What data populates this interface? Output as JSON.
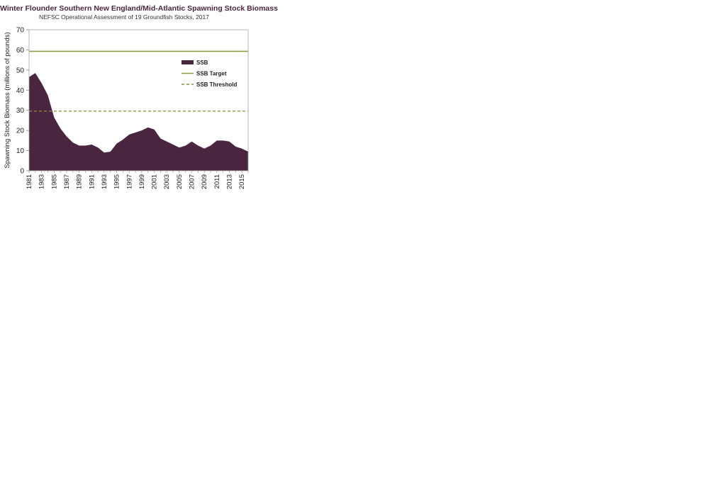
{
  "chart_data": {
    "type": "area",
    "title": "Winter Flounder Southern New England/Mid-Atlantic Spawning Stock Biomass",
    "subtitle": "NEFSC Operational Assessment of 19 Groundfish Stocks, 2017",
    "xlabel": "",
    "ylabel": "Spawning Stock Biomass (millions of pounds)",
    "ylim": [
      0,
      70
    ],
    "yticks": [
      0,
      10,
      20,
      30,
      40,
      50,
      60,
      70
    ],
    "xticks": [
      "1981",
      "1983",
      "1985",
      "1987",
      "1989",
      "1991",
      "1993",
      "1995",
      "1997",
      "1999",
      "2001",
      "2003",
      "2005",
      "2007",
      "2009",
      "2011",
      "2013",
      "2015"
    ],
    "x": [
      1981,
      1982,
      1983,
      1984,
      1985,
      1986,
      1987,
      1988,
      1989,
      1990,
      1991,
      1992,
      1993,
      1994,
      1995,
      1996,
      1997,
      1998,
      1999,
      2000,
      2001,
      2002,
      2003,
      2004,
      2005,
      2006,
      2007,
      2008,
      2009,
      2010,
      2011,
      2012,
      2013,
      2014,
      2015,
      2016
    ],
    "xrange": [
      1981,
      2016
    ],
    "grid": false,
    "legend_position": "top-right",
    "series": [
      {
        "name": "SSB",
        "kind": "area",
        "color": "#4a2540",
        "values": [
          46.5,
          48.5,
          43.5,
          37.5,
          26.5,
          21.0,
          17.0,
          14.0,
          12.5,
          12.5,
          13.0,
          11.5,
          9.0,
          9.5,
          13.5,
          15.5,
          18.0,
          19.0,
          20.0,
          21.5,
          20.5,
          16.0,
          14.5,
          13.0,
          11.5,
          12.5,
          14.5,
          12.5,
          11.0,
          12.5,
          15.0,
          15.0,
          14.5,
          12.0,
          11.0,
          9.5
        ]
      },
      {
        "name": "SSB Target",
        "kind": "hline",
        "value": 59.3,
        "color": "#8aa040",
        "dash": "solid"
      },
      {
        "name": "SSB Threshold",
        "kind": "hline",
        "value": 29.6,
        "color": "#8a8a3c",
        "dash": "dashed"
      }
    ]
  }
}
